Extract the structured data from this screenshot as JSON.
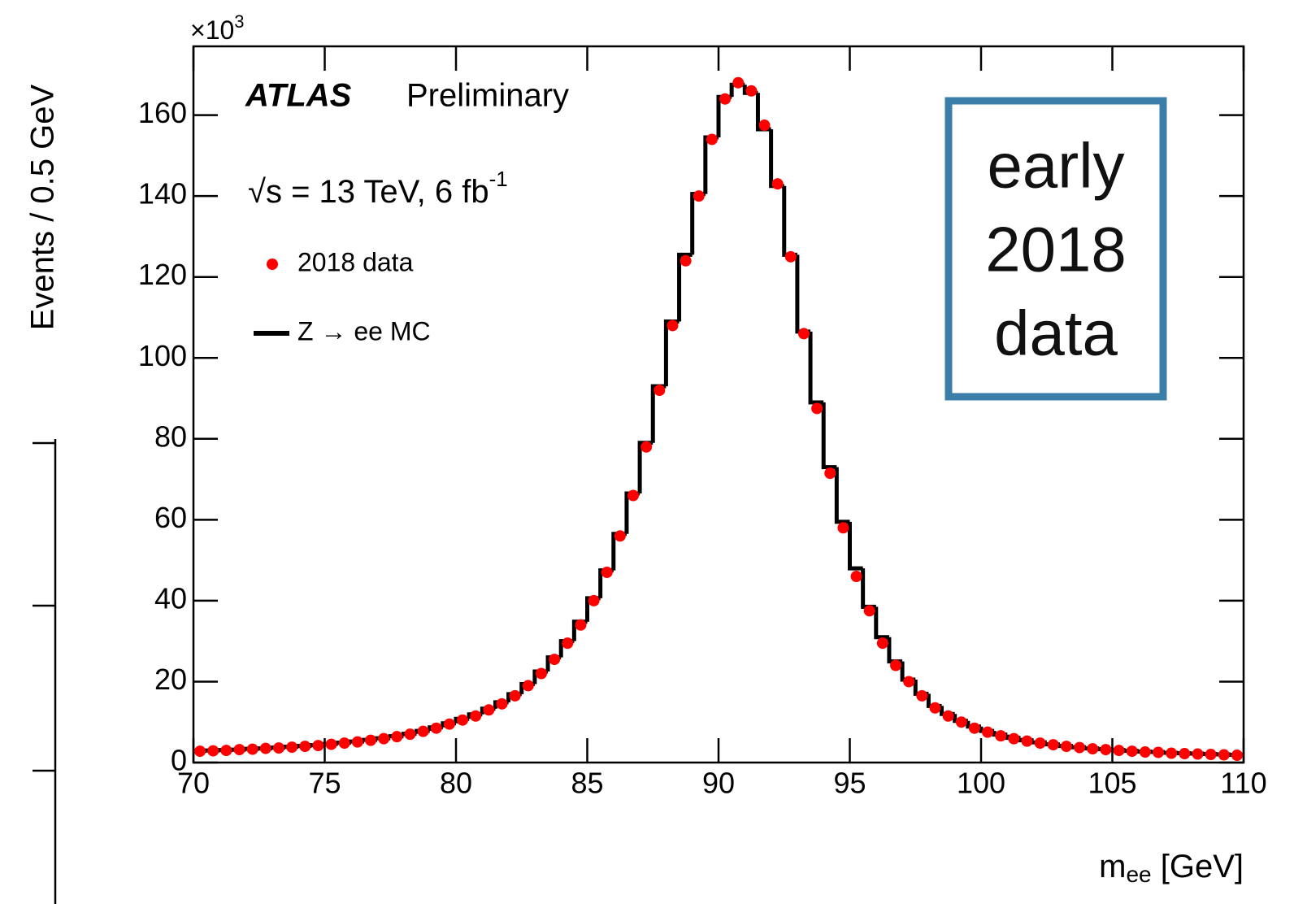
{
  "chart_data": {
    "type": "histogram",
    "experiment": "ATLAS",
    "status": "Preliminary",
    "energy_label": {
      "text": "√s = 13 TeV, 6 fb",
      "exponent": "-1"
    },
    "ylabel": "Events / 0.5 GeV",
    "y_multiplier": {
      "text": "×10",
      "exponent": "3"
    },
    "xlabel": {
      "text": "m",
      "subscript": "ee",
      "unit": " [GeV]"
    },
    "annotation": [
      "early",
      "2018",
      "data"
    ],
    "xlim": [
      70,
      110
    ],
    "ylim": [
      0,
      177
    ],
    "xticks": [
      70,
      75,
      80,
      85,
      90,
      95,
      100,
      105,
      110
    ],
    "yticks": [
      0,
      20,
      40,
      60,
      80,
      100,
      120,
      140,
      160
    ],
    "legend": "top-left",
    "bins": [
      70,
      70.5,
      71,
      71.5,
      72,
      72.5,
      73,
      73.5,
      74,
      74.5,
      75,
      75.5,
      76,
      76.5,
      77,
      77.5,
      78,
      78.5,
      79,
      79.5,
      80,
      80.5,
      81,
      81.5,
      82,
      82.5,
      83,
      83.5,
      84,
      84.5,
      85,
      85.5,
      86,
      86.5,
      87,
      87.5,
      88,
      88.5,
      89,
      89.5,
      90,
      90.5,
      91,
      91.5,
      92,
      92.5,
      93,
      93.5,
      94,
      94.5,
      95,
      95.5,
      96,
      96.5,
      97,
      97.5,
      98,
      98.5,
      99,
      99.5,
      100,
      100.5,
      101,
      101.5,
      102,
      102.5,
      103,
      103.5,
      104,
      104.5,
      105,
      105.5,
      106,
      106.5,
      107,
      107.5,
      108,
      108.5,
      109,
      109.5,
      110
    ],
    "series": [
      {
        "name": "Z → ee MC",
        "color": "#000000",
        "style": "step",
        "values": [
          2.9,
          3.0,
          3.1,
          3.2,
          3.4,
          3.5,
          3.7,
          3.9,
          4.1,
          4.3,
          4.6,
          4.9,
          5.2,
          5.6,
          6.0,
          6.5,
          7.1,
          7.8,
          8.7,
          9.7,
          10.8,
          11.9,
          13.3,
          14.9,
          16.9,
          19.4,
          22.5,
          26.0,
          30.0,
          34.8,
          40.6,
          47.5,
          56.5,
          66.5,
          79.0,
          93.0,
          109.0,
          125.5,
          140.5,
          154.5,
          164.5,
          167.5,
          165.5,
          156.5,
          142.5,
          125.5,
          106.5,
          89.0,
          73.0,
          59.5,
          48.0,
          38.5,
          31.0,
          25.0,
          20.5,
          17.0,
          14.0,
          12.0,
          10.3,
          8.9,
          7.8,
          6.9,
          6.1,
          5.5,
          5.0,
          4.5,
          4.1,
          3.8,
          3.5,
          3.3,
          3.1,
          2.9,
          2.7,
          2.6,
          2.4,
          2.3,
          2.2,
          2.1,
          2.0,
          1.9
        ]
      },
      {
        "name": "2018 data",
        "color": "#ff0000",
        "style": "points",
        "values": [
          2.8,
          2.9,
          3.0,
          3.2,
          3.3,
          3.5,
          3.6,
          3.8,
          4.0,
          4.2,
          4.5,
          4.8,
          5.1,
          5.5,
          5.9,
          6.4,
          7.0,
          7.7,
          8.5,
          9.5,
          10.5,
          11.5,
          13.0,
          14.5,
          16.5,
          19.0,
          22.0,
          25.5,
          29.5,
          34.0,
          40.0,
          47.0,
          56.0,
          66.0,
          78.0,
          92.0,
          108.0,
          124.0,
          140.0,
          154.0,
          164.0,
          168.0,
          166.0,
          157.5,
          143.0,
          125.0,
          106.0,
          87.5,
          71.5,
          58.0,
          46.0,
          37.5,
          29.5,
          24.0,
          20.0,
          16.5,
          13.5,
          11.5,
          10.0,
          8.5,
          7.5,
          6.6,
          5.9,
          5.3,
          4.8,
          4.4,
          4.0,
          3.7,
          3.4,
          3.2,
          3.0,
          2.8,
          2.6,
          2.5,
          2.3,
          2.2,
          2.1,
          2.0,
          1.9,
          1.8
        ]
      }
    ]
  }
}
